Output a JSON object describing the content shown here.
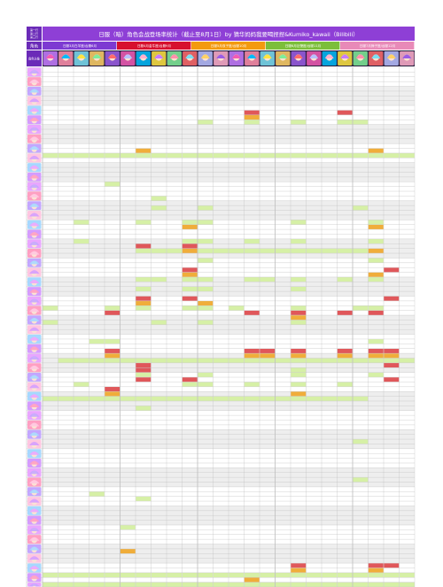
{
  "title": "日服（暗）角色会战登场率统计（截止至8月1日）by 猜华妈妈我要喝捏捏&Kumiko_kawaii（Bilibili）",
  "corner_lines": [
    "第一行",
    "第二行",
    "第三行"
  ],
  "left_header": "角色",
  "left_row3_label": "角色头像",
  "colors": {
    "title_bar": "#8e3fd6",
    "left_header": "#6b2bb8",
    "avatar_strip": "#2a2140",
    "grid_line": "#bdbdbd",
    "row_band": "#eeeeee",
    "light_green": "#d6f0a6",
    "orange": "#f0ad3a",
    "red": "#e0575a"
  },
  "groups": [
    {
      "label": "日服3月白羊座/台服6月",
      "color": "#7d3ad2"
    },
    {
      "label": "日服4月金牛座/台服9月",
      "color": "#d7102e"
    },
    {
      "label": "日服5月双子座/台服10月",
      "color": "#f39a0f"
    },
    {
      "label": "日服6月巨蟹座/台服11月",
      "color": "#7cbe3a"
    },
    {
      "label": "日服7月狮子座/台服12月",
      "color": "#e88ab8"
    }
  ],
  "highlights": [
    [
      9,
      13,
      "red"
    ],
    [
      9,
      19,
      "red"
    ],
    [
      10,
      13,
      "orange"
    ],
    [
      11,
      10,
      "light_green"
    ],
    [
      11,
      13,
      "light_green"
    ],
    [
      11,
      16,
      "light_green"
    ],
    [
      11,
      19,
      "light_green"
    ],
    [
      11,
      20,
      "light_green"
    ],
    [
      17,
      6,
      "orange"
    ],
    [
      17,
      21,
      "orange"
    ],
    [
      18,
      0,
      "light_green"
    ],
    [
      18,
      1,
      "light_green"
    ],
    [
      18,
      2,
      "light_green"
    ],
    [
      18,
      3,
      "light_green"
    ],
    [
      18,
      4,
      "light_green"
    ],
    [
      18,
      5,
      "light_green"
    ],
    [
      18,
      6,
      "light_green"
    ],
    [
      18,
      7,
      "light_green"
    ],
    [
      18,
      8,
      "light_green"
    ],
    [
      18,
      9,
      "light_green"
    ],
    [
      18,
      10,
      "light_green"
    ],
    [
      18,
      11,
      "light_green"
    ],
    [
      18,
      12,
      "light_green"
    ],
    [
      18,
      13,
      "light_green"
    ],
    [
      18,
      14,
      "light_green"
    ],
    [
      18,
      15,
      "light_green"
    ],
    [
      18,
      16,
      "light_green"
    ],
    [
      18,
      17,
      "light_green"
    ],
    [
      18,
      18,
      "light_green"
    ],
    [
      18,
      19,
      "light_green"
    ],
    [
      18,
      20,
      "light_green"
    ],
    [
      18,
      21,
      "light_green"
    ],
    [
      18,
      22,
      "light_green"
    ],
    [
      18,
      23,
      "light_green"
    ],
    [
      24,
      4,
      "light_green"
    ],
    [
      27,
      7,
      "light_green"
    ],
    [
      29,
      7,
      "light_green"
    ],
    [
      29,
      10,
      "light_green"
    ],
    [
      29,
      20,
      "light_green"
    ],
    [
      32,
      2,
      "light_green"
    ],
    [
      32,
      6,
      "light_green"
    ],
    [
      32,
      9,
      "light_green"
    ],
    [
      32,
      10,
      "light_green"
    ],
    [
      32,
      16,
      "light_green"
    ],
    [
      32,
      21,
      "light_green"
    ],
    [
      33,
      9,
      "orange"
    ],
    [
      33,
      21,
      "orange"
    ],
    [
      36,
      2,
      "light_green"
    ],
    [
      36,
      9,
      "light_green"
    ],
    [
      36,
      10,
      "light_green"
    ],
    [
      36,
      13,
      "light_green"
    ],
    [
      36,
      16,
      "light_green"
    ],
    [
      36,
      21,
      "light_green"
    ],
    [
      37,
      6,
      "red"
    ],
    [
      37,
      9,
      "red"
    ],
    [
      38,
      6,
      "light_green"
    ],
    [
      38,
      7,
      "light_green"
    ],
    [
      38,
      8,
      "light_green"
    ],
    [
      38,
      9,
      "orange"
    ],
    [
      38,
      10,
      "light_green"
    ],
    [
      38,
      11,
      "light_green"
    ],
    [
      38,
      12,
      "light_green"
    ],
    [
      38,
      13,
      "light_green"
    ],
    [
      38,
      14,
      "light_green"
    ],
    [
      38,
      15,
      "light_green"
    ],
    [
      38,
      16,
      "light_green"
    ],
    [
      38,
      17,
      "light_green"
    ],
    [
      38,
      18,
      "light_green"
    ],
    [
      38,
      19,
      "light_green"
    ],
    [
      38,
      20,
      "light_green"
    ],
    [
      38,
      21,
      "orange"
    ],
    [
      40,
      10,
      "light_green"
    ],
    [
      40,
      21,
      "light_green"
    ],
    [
      42,
      9,
      "red"
    ],
    [
      42,
      22,
      "red"
    ],
    [
      43,
      9,
      "orange"
    ],
    [
      43,
      21,
      "orange"
    ],
    [
      44,
      6,
      "light_green"
    ],
    [
      44,
      7,
      "light_green"
    ],
    [
      44,
      9,
      "light_green"
    ],
    [
      44,
      10,
      "light_green"
    ],
    [
      44,
      13,
      "light_green"
    ],
    [
      44,
      14,
      "light_green"
    ],
    [
      44,
      16,
      "light_green"
    ],
    [
      44,
      19,
      "light_green"
    ],
    [
      44,
      21,
      "light_green"
    ],
    [
      46,
      6,
      "light_green"
    ],
    [
      46,
      9,
      "light_green"
    ],
    [
      46,
      10,
      "light_green"
    ],
    [
      46,
      16,
      "light_green"
    ],
    [
      48,
      6,
      "red"
    ],
    [
      48,
      9,
      "red"
    ],
    [
      48,
      22,
      "red"
    ],
    [
      49,
      6,
      "orange"
    ],
    [
      49,
      10,
      "orange"
    ],
    [
      50,
      0,
      "light_green"
    ],
    [
      50,
      4,
      "light_green"
    ],
    [
      50,
      6,
      "light_green"
    ],
    [
      50,
      9,
      "light_green"
    ],
    [
      50,
      10,
      "light_green"
    ],
    [
      50,
      12,
      "light_green"
    ],
    [
      50,
      16,
      "light_green"
    ],
    [
      50,
      20,
      "light_green"
    ],
    [
      50,
      21,
      "light_green"
    ],
    [
      51,
      4,
      "red"
    ],
    [
      51,
      13,
      "red"
    ],
    [
      51,
      16,
      "red"
    ],
    [
      51,
      19,
      "red"
    ],
    [
      51,
      21,
      "red"
    ],
    [
      52,
      16,
      "orange"
    ],
    [
      53,
      0,
      "light_green"
    ],
    [
      53,
      7,
      "light_green"
    ],
    [
      53,
      10,
      "light_green"
    ],
    [
      53,
      16,
      "light_green"
    ],
    [
      57,
      3,
      "light_green"
    ],
    [
      57,
      4,
      "light_green"
    ],
    [
      57,
      21,
      "light_green"
    ],
    [
      59,
      4,
      "red"
    ],
    [
      59,
      13,
      "red"
    ],
    [
      59,
      14,
      "red"
    ],
    [
      59,
      16,
      "red"
    ],
    [
      59,
      19,
      "red"
    ],
    [
      59,
      21,
      "red"
    ],
    [
      59,
      22,
      "red"
    ],
    [
      60,
      4,
      "orange"
    ],
    [
      60,
      13,
      "orange"
    ],
    [
      60,
      14,
      "orange"
    ],
    [
      60,
      16,
      "orange"
    ],
    [
      60,
      19,
      "orange"
    ],
    [
      60,
      21,
      "orange"
    ],
    [
      60,
      22,
      "orange"
    ],
    [
      61,
      1,
      "light_green"
    ],
    [
      61,
      2,
      "light_green"
    ],
    [
      61,
      3,
      "light_green"
    ],
    [
      61,
      4,
      "light_green"
    ],
    [
      61,
      5,
      "light_green"
    ],
    [
      61,
      6,
      "light_green"
    ],
    [
      61,
      7,
      "light_green"
    ],
    [
      61,
      8,
      "light_green"
    ],
    [
      61,
      9,
      "light_green"
    ],
    [
      61,
      10,
      "light_green"
    ],
    [
      61,
      11,
      "light_green"
    ],
    [
      61,
      12,
      "light_green"
    ],
    [
      61,
      13,
      "light_green"
    ],
    [
      61,
      14,
      "light_green"
    ],
    [
      61,
      15,
      "light_green"
    ],
    [
      61,
      16,
      "light_green"
    ],
    [
      61,
      17,
      "light_green"
    ],
    [
      61,
      18,
      "light_green"
    ],
    [
      61,
      19,
      "light_green"
    ],
    [
      61,
      20,
      "light_green"
    ],
    [
      61,
      21,
      "light_green"
    ],
    [
      61,
      22,
      "light_green"
    ],
    [
      61,
      23,
      "light_green"
    ],
    [
      62,
      6,
      "red"
    ],
    [
      62,
      22,
      "red"
    ],
    [
      63,
      6,
      "red"
    ],
    [
      63,
      16,
      "light_green"
    ],
    [
      64,
      6,
      "light_green"
    ],
    [
      64,
      10,
      "light_green"
    ],
    [
      64,
      16,
      "light_green"
    ],
    [
      64,
      21,
      "light_green"
    ],
    [
      65,
      6,
      "red"
    ],
    [
      65,
      9,
      "red"
    ],
    [
      65,
      22,
      "red"
    ],
    [
      66,
      2,
      "light_green"
    ],
    [
      66,
      9,
      "light_green"
    ],
    [
      66,
      10,
      "light_green"
    ],
    [
      66,
      13,
      "light_green"
    ],
    [
      66,
      16,
      "light_green"
    ],
    [
      66,
      19,
      "light_green"
    ],
    [
      67,
      4,
      "red"
    ],
    [
      68,
      4,
      "orange"
    ],
    [
      68,
      16,
      "orange"
    ],
    [
      69,
      0,
      "light_green"
    ],
    [
      69,
      1,
      "light_green"
    ],
    [
      69,
      2,
      "light_green"
    ],
    [
      69,
      3,
      "light_green"
    ],
    [
      69,
      4,
      "light_green"
    ],
    [
      69,
      5,
      "light_green"
    ],
    [
      69,
      6,
      "light_green"
    ],
    [
      69,
      7,
      "light_green"
    ],
    [
      69,
      8,
      "light_green"
    ],
    [
      69,
      9,
      "light_green"
    ],
    [
      69,
      10,
      "light_green"
    ],
    [
      69,
      11,
      "light_green"
    ],
    [
      69,
      12,
      "light_green"
    ],
    [
      69,
      13,
      "light_green"
    ],
    [
      69,
      14,
      "light_green"
    ],
    [
      69,
      15,
      "light_green"
    ],
    [
      69,
      16,
      "light_green"
    ],
    [
      69,
      17,
      "light_green"
    ],
    [
      69,
      18,
      "light_green"
    ],
    [
      69,
      19,
      "light_green"
    ],
    [
      69,
      20,
      "light_green"
    ],
    [
      71,
      6,
      "light_green"
    ],
    [
      78,
      20,
      "light_green"
    ],
    [
      86,
      20,
      "light_green"
    ],
    [
      89,
      3,
      "light_green"
    ],
    [
      90,
      6,
      "light_green"
    ],
    [
      96,
      5,
      "light_green"
    ],
    [
      101,
      5,
      "orange"
    ],
    [
      104,
      16,
      "red"
    ],
    [
      104,
      21,
      "red"
    ],
    [
      104,
      22,
      "red"
    ],
    [
      105,
      16,
      "orange"
    ],
    [
      105,
      21,
      "orange"
    ],
    [
      106,
      0,
      "light_green"
    ],
    [
      106,
      1,
      "light_green"
    ],
    [
      106,
      2,
      "light_green"
    ],
    [
      106,
      3,
      "light_green"
    ],
    [
      106,
      4,
      "light_green"
    ],
    [
      106,
      5,
      "light_green"
    ],
    [
      106,
      6,
      "light_green"
    ],
    [
      106,
      7,
      "light_green"
    ],
    [
      106,
      8,
      "light_green"
    ],
    [
      106,
      9,
      "light_green"
    ],
    [
      106,
      10,
      "light_green"
    ],
    [
      106,
      11,
      "light_green"
    ],
    [
      106,
      12,
      "light_green"
    ],
    [
      106,
      13,
      "light_green"
    ],
    [
      106,
      14,
      "light_green"
    ],
    [
      106,
      15,
      "light_green"
    ],
    [
      106,
      16,
      "light_green"
    ],
    [
      106,
      17,
      "light_green"
    ],
    [
      106,
      18,
      "light_green"
    ],
    [
      106,
      19,
      "light_green"
    ],
    [
      106,
      20,
      "light_green"
    ],
    [
      106,
      21,
      "light_green"
    ],
    [
      106,
      22,
      "light_green"
    ],
    [
      106,
      23,
      "light_green"
    ],
    [
      107,
      13,
      "orange"
    ],
    [
      108,
      0,
      "light_green"
    ],
    [
      108,
      1,
      "light_green"
    ],
    [
      108,
      2,
      "light_green"
    ],
    [
      108,
      3,
      "light_green"
    ],
    [
      108,
      4,
      "light_green"
    ],
    [
      108,
      5,
      "light_green"
    ],
    [
      108,
      6,
      "light_green"
    ],
    [
      108,
      7,
      "light_green"
    ],
    [
      108,
      8,
      "light_green"
    ],
    [
      108,
      9,
      "light_green"
    ],
    [
      108,
      10,
      "light_green"
    ],
    [
      108,
      11,
      "light_green"
    ],
    [
      108,
      12,
      "light_green"
    ],
    [
      108,
      13,
      "light_green"
    ],
    [
      108,
      14,
      "light_green"
    ],
    [
      108,
      15,
      "light_green"
    ],
    [
      108,
      16,
      "light_green"
    ],
    [
      108,
      17,
      "light_green"
    ],
    [
      108,
      18,
      "light_green"
    ],
    [
      108,
      19,
      "light_green"
    ],
    [
      108,
      20,
      "light_green"
    ],
    [
      108,
      21,
      "light_green"
    ],
    [
      108,
      22,
      "light_green"
    ],
    [
      108,
      23,
      "light_green"
    ]
  ]
}
